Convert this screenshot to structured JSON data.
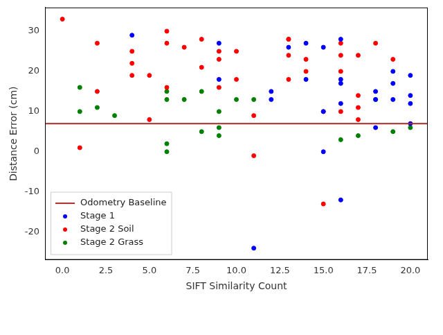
{
  "chart_data": {
    "type": "scatter",
    "x_label": "SIFT Similarity Count",
    "y_label": "Distance Error (cm)",
    "xlim": [
      -1,
      21
    ],
    "ylim": [
      -26.9,
      35.9
    ],
    "xticks": [
      {
        "value": 0,
        "label": "0.0"
      },
      2.5,
      {
        "value": 5,
        "label": "5.0"
      },
      7.5,
      {
        "value": 10,
        "label": "10.0"
      },
      12.5,
      {
        "value": 15,
        "label": "15.0"
      },
      17.5,
      {
        "value": 20,
        "label": "20.0"
      }
    ],
    "yticks": [
      -20,
      -10,
      0,
      10,
      20,
      30
    ],
    "grid": false,
    "legend": "lower left",
    "baseline": {
      "name": "Odometry Baseline",
      "value": 7,
      "color": "#a52a2a",
      "line_style": "solid"
    },
    "series": [
      {
        "name": "Stage 1",
        "color": "#0000ff",
        "marker": "circle",
        "x": [
          4,
          9,
          9,
          11,
          12,
          12,
          13,
          14,
          14,
          15,
          15,
          15,
          16,
          16,
          16,
          16,
          16,
          18,
          18,
          18,
          19,
          19,
          19,
          20,
          20,
          20,
          20
        ],
        "values": [
          29,
          27,
          18,
          -24,
          15,
          13,
          26,
          27,
          18,
          26,
          10,
          0,
          28,
          18,
          17,
          12,
          -12,
          15,
          13,
          6,
          20,
          17,
          13,
          19,
          14,
          12,
          7
        ]
      },
      {
        "name": "Stage 2 Soil",
        "color": "#ff0000",
        "marker": "circle",
        "x": [
          0,
          1,
          2,
          2,
          4,
          4,
          4,
          5,
          5,
          6,
          6,
          6,
          7,
          8,
          8,
          9,
          9,
          9,
          10,
          10,
          11,
          11,
          13,
          13,
          13,
          13,
          14,
          14,
          15,
          15,
          16,
          16,
          16,
          16,
          17,
          17,
          17,
          17,
          18,
          19
        ],
        "values": [
          33,
          1,
          27,
          15,
          25,
          22,
          19,
          19,
          8,
          30,
          27,
          16,
          26,
          28,
          21,
          25,
          23,
          16,
          25,
          18,
          9,
          -1,
          28,
          28,
          24,
          18,
          23,
          20,
          10,
          -13,
          27,
          24,
          20,
          10,
          24,
          14,
          11,
          8,
          27,
          23
        ]
      },
      {
        "name": "Stage 2 Grass",
        "color": "#008000",
        "marker": "circle",
        "x": [
          1,
          1,
          2,
          3,
          6,
          6,
          6,
          6,
          7,
          8,
          8,
          9,
          9,
          9,
          10,
          11,
          16,
          17,
          18,
          19,
          20
        ],
        "values": [
          16,
          10,
          11,
          9,
          15,
          13,
          2,
          0,
          13,
          15,
          5,
          10,
          6,
          4,
          13,
          13,
          3,
          4,
          13,
          5,
          6
        ]
      }
    ]
  }
}
